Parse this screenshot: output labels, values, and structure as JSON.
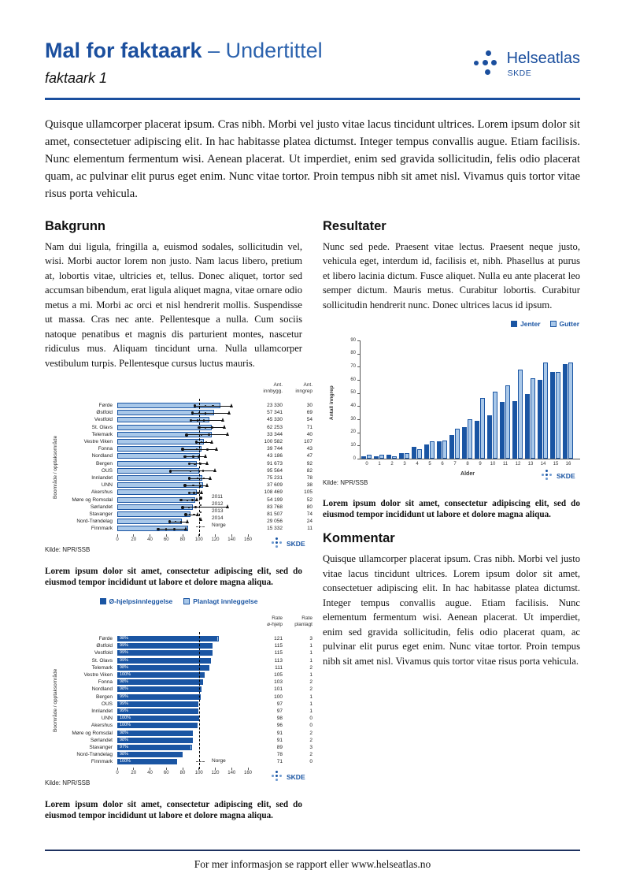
{
  "header": {
    "title_bold": "Mal for faktaark",
    "title_rest": "– Undertittel",
    "subtitle": "faktaark 1",
    "logo": {
      "brand": "Helseatlas",
      "sub": "SKDE"
    }
  },
  "intro": "Quisque ullamcorper placerat ipsum. Cras nibh. Morbi vel justo vitae lacus tincidunt ultrices. Lorem ipsum dolor sit amet, consectetuer adipiscing elit. In hac habitasse platea dictumst. Integer tempus convallis augue. Etiam facilisis. Nunc elementum fermentum wisi. Aenean placerat. Ut imperdiet, enim sed gravida sollicitudin, felis odio placerat quam, ac pulvinar elit purus eget enim. Nunc vitae tortor. Proin tempus nibh sit amet nisl. Vivamus quis tortor vitae risus porta vehicula.",
  "sections": {
    "bakgrunn": {
      "heading": "Bakgrunn",
      "body": "Nam dui ligula, fringilla a, euismod sodales, sollicitudin vel, wisi. Morbi auctor lorem non justo. Nam lacus libero, pretium at, lobortis vitae, ultricies et, tellus. Donec aliquet, tortor sed accumsan bibendum, erat ligula aliquet magna, vitae ornare odio metus a mi. Morbi ac orci et nisl hendrerit mollis. Suspendisse ut massa. Cras nec ante. Pellentesque a nulla. Cum sociis natoque penatibus et magnis dis parturient montes, nascetur ridiculus mus. Aliquam tincidunt urna. Nulla ullamcorper vestibulum turpis. Pellentesque cursus luctus mauris."
    },
    "resultater": {
      "heading": "Resultater",
      "body": "Nunc sed pede. Praesent vitae lectus. Praesent neque justo, vehicula eget, interdum id, facilisis et, nibh. Phasellus at purus et libero lacinia dictum. Fusce aliquet. Nulla eu ante placerat leo semper dictum. Mauris metus. Curabitur lobortis. Curabitur sollicitudin hendrerit nunc. Donec ultrices lacus id ipsum."
    },
    "kommentar": {
      "heading": "Kommentar",
      "body": "Quisque ullamcorper placerat ipsum. Cras nibh. Morbi vel justo vitae lacus tincidunt ultrices. Lorem ipsum dolor sit amet, consectetuer adipiscing elit. In hac habitasse platea dictumst. Integer tempus convallis augue. Etiam facilisis. Nunc elementum fermentum wisi. Aenean placerat. Ut imperdiet, enim sed gravida sollicitudin, felis odio placerat quam, ac pulvinar elit purus eget enim. Nunc vitae tortor. Proin tempus nibh sit amet nisl. Vivamus quis tortor vitae risus porta vehicula."
    }
  },
  "captions": {
    "chart1": "Lorem ipsum dolor sit amet, consectetur adipiscing elit, sed do eiusmod tempor incididunt ut labore et dolore magna aliqua.",
    "chart2": "Lorem ipsum dolor sit amet, consectetur adipiscing elit, sed do eiusmod tempor incididunt ut labore et dolore magna aliqua.",
    "chart3": "Lorem ipsum dolor sit amet, consectetur adipiscing elit, sed do eiusmod tempor incididunt ut labore et dolore magna aliqua."
  },
  "footer": "For mer informasjon se rapport eller www.helseatlas.no",
  "skde_label": "SKDE",
  "colors": {
    "brand_blue": "#1B4F9E",
    "bar_dark": "#1A55A3",
    "bar_light": "#A9C8E9",
    "marker_black": "#111111",
    "footer_line": "#1D3160"
  },
  "chart_data": [
    {
      "type": "bar",
      "orientation": "horizontal",
      "ylabel": "Boområde / opptaksområde",
      "source": "Kilde: NPR/SSB",
      "xlim": [
        0,
        160
      ],
      "xticks": [
        0,
        20,
        40,
        60,
        80,
        100,
        120,
        140,
        160
      ],
      "norge_line": 100,
      "col_headers": [
        "Ant.\ninnbygg.",
        "Ant.\ninngrep"
      ],
      "legend": [
        "2011",
        "2012",
        "2013",
        "2014",
        "Norge"
      ],
      "rows": [
        {
          "name": "Førde",
          "rate": 126,
          "dots": [
            95,
            108,
            117,
            140
          ],
          "c1": "23 330",
          "c2": "30"
        },
        {
          "name": "Østfold",
          "rate": 119,
          "dots": [
            92,
            100,
            108,
            137
          ],
          "c1": "57 341",
          "c2": "69"
        },
        {
          "name": "Vestfold",
          "rate": 113,
          "dots": [
            90,
            98,
            106,
            130
          ],
          "c1": "45 330",
          "c2": "54"
        },
        {
          "name": "St. Olavs",
          "rate": 116,
          "dots": [
            100,
            108,
            116,
            132
          ],
          "c1": "62 253",
          "c2": "71"
        },
        {
          "name": "Telemark",
          "rate": 116,
          "dots": [
            85,
            103,
            112,
            135
          ],
          "c1": "33 344",
          "c2": "40"
        },
        {
          "name": "Vestre Viken",
          "rate": 106,
          "dots": [
            97,
            103,
            109,
            116
          ],
          "c1": "100 582",
          "c2": "107"
        },
        {
          "name": "Fonna",
          "rate": 103,
          "dots": [
            80,
            97,
            110,
            122
          ],
          "c1": "39 744",
          "c2": "43"
        },
        {
          "name": "Nordland",
          "rate": 101,
          "dots": [
            83,
            93,
            100,
            108
          ],
          "c1": "43 186",
          "c2": "47"
        },
        {
          "name": "Bergen",
          "rate": 97,
          "dots": [
            88,
            95,
            102,
            110
          ],
          "c1": "91 673",
          "c2": "92"
        },
        {
          "name": "OUS",
          "rate": 100,
          "dots": [
            65,
            90,
            105,
            120
          ],
          "c1": "95 564",
          "c2": "82"
        },
        {
          "name": "Innlandet",
          "rate": 104,
          "dots": [
            88,
            98,
            106,
            114
          ],
          "c1": "75 231",
          "c2": "78"
        },
        {
          "name": "UNN",
          "rate": 105,
          "dots": [
            83,
            93,
            102,
            110
          ],
          "c1": "37 609",
          "c2": "38"
        },
        {
          "name": "Akershus",
          "rate": 97,
          "dots": [
            88,
            94,
            99,
            104
          ],
          "c1": "108 469",
          "c2": "105"
        },
        {
          "name": "Møre og Romsdal",
          "rate": 95,
          "dots": [
            78,
            86,
            92,
            98
          ],
          "c1": "54 199",
          "c2": "52"
        },
        {
          "name": "Sørlandet",
          "rate": 93,
          "dots": [
            80,
            88,
            96,
            135
          ],
          "c1": "83 768",
          "c2": "80"
        },
        {
          "name": "Stavanger",
          "rate": 90,
          "dots": [
            84,
            89,
            94,
            99
          ],
          "c1": "81 507",
          "c2": "74"
        },
        {
          "name": "Nord-Trøndelag",
          "rate": 79,
          "dots": [
            64,
            71,
            78,
            86
          ],
          "c1": "29 056",
          "c2": "24"
        },
        {
          "name": "Finnmark",
          "rate": 87,
          "dots": [
            50,
            60,
            70,
            84
          ],
          "c1": "15 332",
          "c2": "11"
        }
      ]
    },
    {
      "type": "bar",
      "orientation": "horizontal-stacked",
      "ylabel": "Boområde / opptaksområde",
      "source": "Kilde: NPR/SSB",
      "xlim": [
        0,
        160
      ],
      "xticks": [
        0,
        20,
        40,
        60,
        80,
        100,
        120,
        140,
        160
      ],
      "norge_line": 100,
      "norge_label": "Norge",
      "legend": [
        "Ø-hjelpsinnleggelse",
        "Planlagt innleggelse"
      ],
      "col_headers": [
        "Rate\nø-hjelp",
        "Rate\nplanlagt"
      ],
      "rows": [
        {
          "name": "Førde",
          "pct": "98%",
          "ohjelp": 121,
          "planlagt": 3,
          "c1": "121",
          "c2": "3"
        },
        {
          "name": "Østfold",
          "pct": "99%",
          "ohjelp": 115,
          "planlagt": 1,
          "c1": "115",
          "c2": "1"
        },
        {
          "name": "Vestfold",
          "pct": "99%",
          "ohjelp": 115,
          "planlagt": 1,
          "c1": "115",
          "c2": "1"
        },
        {
          "name": "St. Olavs",
          "pct": "99%",
          "ohjelp": 113,
          "planlagt": 1,
          "c1": "113",
          "c2": "1"
        },
        {
          "name": "Telemark",
          "pct": "98%",
          "ohjelp": 111,
          "planlagt": 2,
          "c1": "111",
          "c2": "2"
        },
        {
          "name": "Vestre Viken",
          "pct": "100%",
          "ohjelp": 105,
          "planlagt": 1,
          "c1": "105",
          "c2": "1"
        },
        {
          "name": "Fonna",
          "pct": "98%",
          "ohjelp": 103,
          "planlagt": 2,
          "c1": "103",
          "c2": "2"
        },
        {
          "name": "Nordland",
          "pct": "98%",
          "ohjelp": 101,
          "planlagt": 2,
          "c1": "101",
          "c2": "2"
        },
        {
          "name": "Bergen",
          "pct": "99%",
          "ohjelp": 100,
          "planlagt": 1,
          "c1": "100",
          "c2": "1"
        },
        {
          "name": "OUS",
          "pct": "99%",
          "ohjelp": 97,
          "planlagt": 1,
          "c1": "97",
          "c2": "1"
        },
        {
          "name": "Innlandet",
          "pct": "99%",
          "ohjelp": 97,
          "planlagt": 1,
          "c1": "97",
          "c2": "1"
        },
        {
          "name": "UNN",
          "pct": "100%",
          "ohjelp": 98,
          "planlagt": 0,
          "c1": "98",
          "c2": "0"
        },
        {
          "name": "Akershus",
          "pct": "100%",
          "ohjelp": 96,
          "planlagt": 0,
          "c1": "96",
          "c2": "0"
        },
        {
          "name": "Møre og Romsdal",
          "pct": "98%",
          "ohjelp": 91,
          "planlagt": 2,
          "c1": "91",
          "c2": "2"
        },
        {
          "name": "Sørlandet",
          "pct": "98%",
          "ohjelp": 91,
          "planlagt": 2,
          "c1": "91",
          "c2": "2"
        },
        {
          "name": "Stavanger",
          "pct": "97%",
          "ohjelp": 89,
          "planlagt": 3,
          "c1": "89",
          "c2": "3"
        },
        {
          "name": "Nord-Trøndelag",
          "pct": "98%",
          "ohjelp": 78,
          "planlagt": 2,
          "c1": "78",
          "c2": "2"
        },
        {
          "name": "Finnmark",
          "pct": "100%",
          "ohjelp": 71,
          "planlagt": 0,
          "c1": "71",
          "c2": "0"
        }
      ]
    },
    {
      "type": "bar",
      "orientation": "vertical-grouped",
      "xlabel": "Alder",
      "ylabel": "Antall inngrep",
      "source": "Kilde: NPR/SSB",
      "ylim": [
        0,
        90
      ],
      "yticks": [
        0,
        10,
        20,
        30,
        40,
        50,
        60,
        70,
        80,
        90
      ],
      "categories": [
        0,
        1,
        2,
        3,
        4,
        5,
        6,
        7,
        8,
        9,
        10,
        11,
        12,
        13,
        14,
        15,
        16
      ],
      "series": [
        {
          "name": "Jenter",
          "values": [
            2,
            2,
            3,
            4,
            9,
            11,
            13,
            18,
            24,
            29,
            33,
            43,
            44,
            49,
            60,
            66,
            72
          ]
        },
        {
          "name": "Gutter",
          "values": [
            3,
            3,
            2,
            4,
            7,
            13,
            14,
            23,
            30,
            46,
            51,
            56,
            68,
            61,
            73,
            66,
            73
          ]
        }
      ],
      "legend_position": "top-right"
    }
  ]
}
